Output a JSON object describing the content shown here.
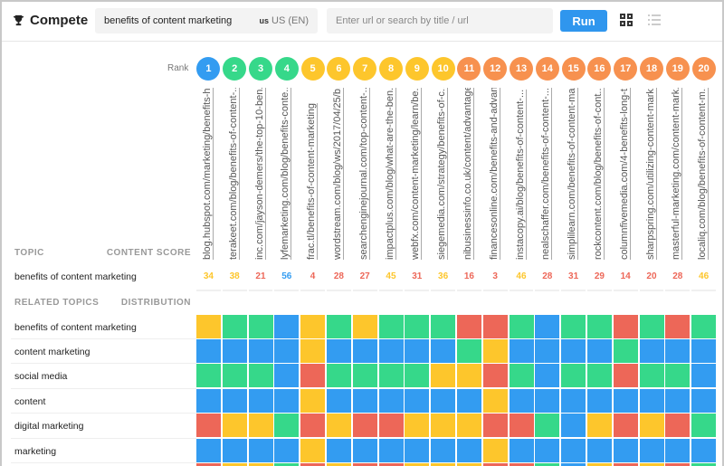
{
  "header": {
    "app_title": "Compete",
    "keyword": "benefits of content marketing",
    "locale_code": "us",
    "locale": "US (EN)",
    "url_placeholder": "Enter url or search by title / url",
    "run_label": "Run"
  },
  "rank_label": "Rank",
  "topic_header": "TOPIC",
  "content_score_header": "CONTENT SCORE",
  "related_header": "RELATED TOPICS",
  "distribution_header": "DISTRIBUTION",
  "topic": "benefits of content marketing",
  "colors": {
    "blue": "#339cf1",
    "green": "#36d88a",
    "yellow": "#fdc62c",
    "red": "#ed6758",
    "orange": "#f7914f"
  },
  "results": [
    {
      "rank": 1,
      "url": "blog.hubspot.com/marketing/benefits-h...",
      "score": 34,
      "score_color": "yellow",
      "rank_color": "blue"
    },
    {
      "rank": 2,
      "url": "terakeet.com/blog/benefits-of-content-...",
      "score": 38,
      "score_color": "yellow",
      "rank_color": "green"
    },
    {
      "rank": 3,
      "url": "inc.com/jayson-demers/the-top-10-ben...",
      "score": 21,
      "score_color": "red",
      "rank_color": "green"
    },
    {
      "rank": 4,
      "url": "lyfemarketing.com/blog/benefits-conte...",
      "score": 56,
      "score_color": "blue",
      "rank_color": "green"
    },
    {
      "rank": 5,
      "url": "frac.tl/benefits-of-content-marketing",
      "score": 4,
      "score_color": "red",
      "rank_color": "yellow"
    },
    {
      "rank": 6,
      "url": "wordstream.com/blog/ws/2017/04/25/b...",
      "score": 28,
      "score_color": "red",
      "rank_color": "yellow"
    },
    {
      "rank": 7,
      "url": "searchenginejournal.com/top-content-...",
      "score": 27,
      "score_color": "red",
      "rank_color": "yellow"
    },
    {
      "rank": 8,
      "url": "impactplus.com/blog/what-are-the-ben...",
      "score": 45,
      "score_color": "yellow",
      "rank_color": "yellow"
    },
    {
      "rank": 9,
      "url": "webfx.com/content-marketing/learn/be...",
      "score": 31,
      "score_color": "red",
      "rank_color": "yellow"
    },
    {
      "rank": 10,
      "url": "siegemedia.com/strategy/benefits-of-c...",
      "score": 36,
      "score_color": "yellow",
      "rank_color": "yellow"
    },
    {
      "rank": 11,
      "url": "nibusinessinfo.co.uk/content/advantage...",
      "score": 16,
      "score_color": "red",
      "rank_color": "orange"
    },
    {
      "rank": 12,
      "url": "financesonline.com/benefits-and-advan...",
      "score": 3,
      "score_color": "red",
      "rank_color": "orange"
    },
    {
      "rank": 13,
      "url": "instacopy.ai/blog/benefits-of-content-...",
      "score": 46,
      "score_color": "yellow",
      "rank_color": "orange"
    },
    {
      "rank": 14,
      "url": "nealschaffer.com/benefits-of-content-...",
      "score": 28,
      "score_color": "red",
      "rank_color": "orange"
    },
    {
      "rank": 15,
      "url": "simplilearn.com/benefits-of-content-ma...",
      "score": 31,
      "score_color": "red",
      "rank_color": "orange"
    },
    {
      "rank": 16,
      "url": "rockcontent.com/blog/benefits-of-cont...",
      "score": 29,
      "score_color": "red",
      "rank_color": "orange"
    },
    {
      "rank": 17,
      "url": "columnfivemedia.com/4-benefits-long-t...",
      "score": 14,
      "score_color": "red",
      "rank_color": "orange"
    },
    {
      "rank": 18,
      "url": "sharpspring.com/utilizing-content-mark...",
      "score": 20,
      "score_color": "red",
      "rank_color": "orange"
    },
    {
      "rank": 19,
      "url": "masterful-marketing.com/content-mark...",
      "score": 28,
      "score_color": "red",
      "rank_color": "orange"
    },
    {
      "rank": 20,
      "url": "localiq.com/blog/benefits-of-content-m...",
      "score": 46,
      "score_color": "yellow",
      "rank_color": "orange"
    }
  ],
  "related_topics": [
    {
      "label": "benefits of content marketing",
      "distribution": "YGGBYGYGGGRRGBGGRGRG"
    },
    {
      "label": "content marketing",
      "distribution": "BBBBYBBBBBGYBBBBGBBB"
    },
    {
      "label": "social media",
      "distribution": "GGGBRGGGGYYRGBGGRGGB"
    },
    {
      "label": "content",
      "distribution": "BBBBYBBBBBBYBBBBBBBB"
    },
    {
      "label": "digital marketing",
      "distribution": "RYYGRYRRYYYRRGBYRYRG"
    },
    {
      "label": "marketing",
      "distribution": "BBBBYBBBBBBYBBBBBBBB"
    }
  ]
}
